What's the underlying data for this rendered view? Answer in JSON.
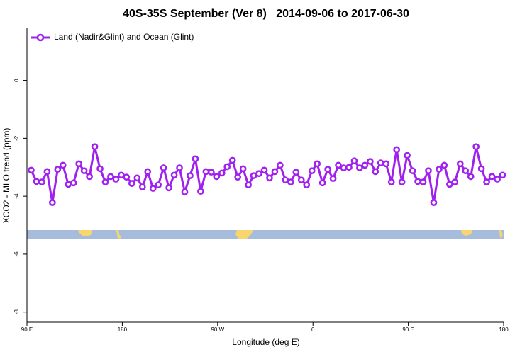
{
  "chart_data": {
    "type": "line",
    "title": "40S-35S September (Ver 8)   2014-09-06 to 2017-06-30",
    "x_label": "Longitude (deg E)",
    "y_label": "XCO2 - MLO trend (ppm)",
    "xlim": [
      90,
      540
    ],
    "ylim": [
      -8.35,
      1.8
    ],
    "xticks": [
      {
        "value": 90,
        "label": "90 E"
      },
      180,
      {
        "value": 270,
        "label": "90 W"
      },
      {
        "value": 360,
        "label": "0"
      },
      {
        "value": 450,
        "label": "90 E"
      },
      {
        "value": 540,
        "label": "180"
      }
    ],
    "yticks": [
      0,
      -2,
      -4,
      -6,
      -8
    ],
    "legend": "top-left",
    "series": [
      {
        "name": "Land (Nadir&Glint) and Ocean (Glint)",
        "color": "#a020f0",
        "x": [
          94,
          99,
          104,
          109,
          114,
          119,
          124,
          129,
          134,
          139,
          144,
          149,
          154,
          159,
          164,
          169,
          174,
          179,
          184,
          189,
          194,
          199,
          204,
          209,
          214,
          219,
          224,
          229,
          234,
          239,
          244,
          249,
          254,
          259,
          264,
          269,
          274,
          279,
          284,
          289,
          294,
          299,
          304,
          309,
          314,
          319,
          324,
          329,
          334,
          339,
          344,
          349,
          354,
          359,
          364,
          369,
          374,
          379,
          384,
          389,
          394,
          399,
          404,
          409,
          414,
          419,
          424,
          429,
          434,
          439,
          444,
          449,
          454,
          459,
          464,
          469,
          474,
          479,
          484,
          489,
          494,
          499,
          504,
          509,
          514,
          519,
          524,
          529,
          534,
          539
        ],
        "values": [
          -3.1,
          -3.49,
          -3.51,
          -3.15,
          -4.22,
          -3.07,
          -2.93,
          -3.59,
          -3.54,
          -2.88,
          -3.12,
          -3.32,
          -2.29,
          -3.05,
          -3.51,
          -3.32,
          -3.41,
          -3.27,
          -3.34,
          -3.56,
          -3.37,
          -3.68,
          -3.15,
          -3.73,
          -3.61,
          -3.02,
          -3.71,
          -3.27,
          -3.02,
          -3.85,
          -3.29,
          -2.71,
          -3.83,
          -3.15,
          -3.17,
          -3.32,
          -3.2,
          -2.98,
          -2.76,
          -3.34,
          -3.05,
          -3.61,
          -3.29,
          -3.22,
          -3.1,
          -3.37,
          -3.15,
          -2.93,
          -3.44,
          -3.51,
          -3.17,
          -3.44,
          -3.61,
          -3.12,
          -2.88,
          -3.54,
          -3.07,
          -3.39,
          -2.93,
          -3.02,
          -3.0,
          -2.78,
          -3.02,
          -2.93,
          -2.8,
          -3.15,
          -2.85,
          -2.88,
          -3.51,
          -2.39,
          -3.51,
          -2.59,
          -3.12,
          -3.49,
          -3.51,
          -3.12,
          -4.22,
          -3.07,
          -2.93,
          -3.59,
          -3.51,
          -2.88,
          -3.12,
          -3.32,
          -2.29,
          -3.05,
          -3.51,
          -3.32,
          -3.41,
          -3.27
        ]
      }
    ]
  }
}
